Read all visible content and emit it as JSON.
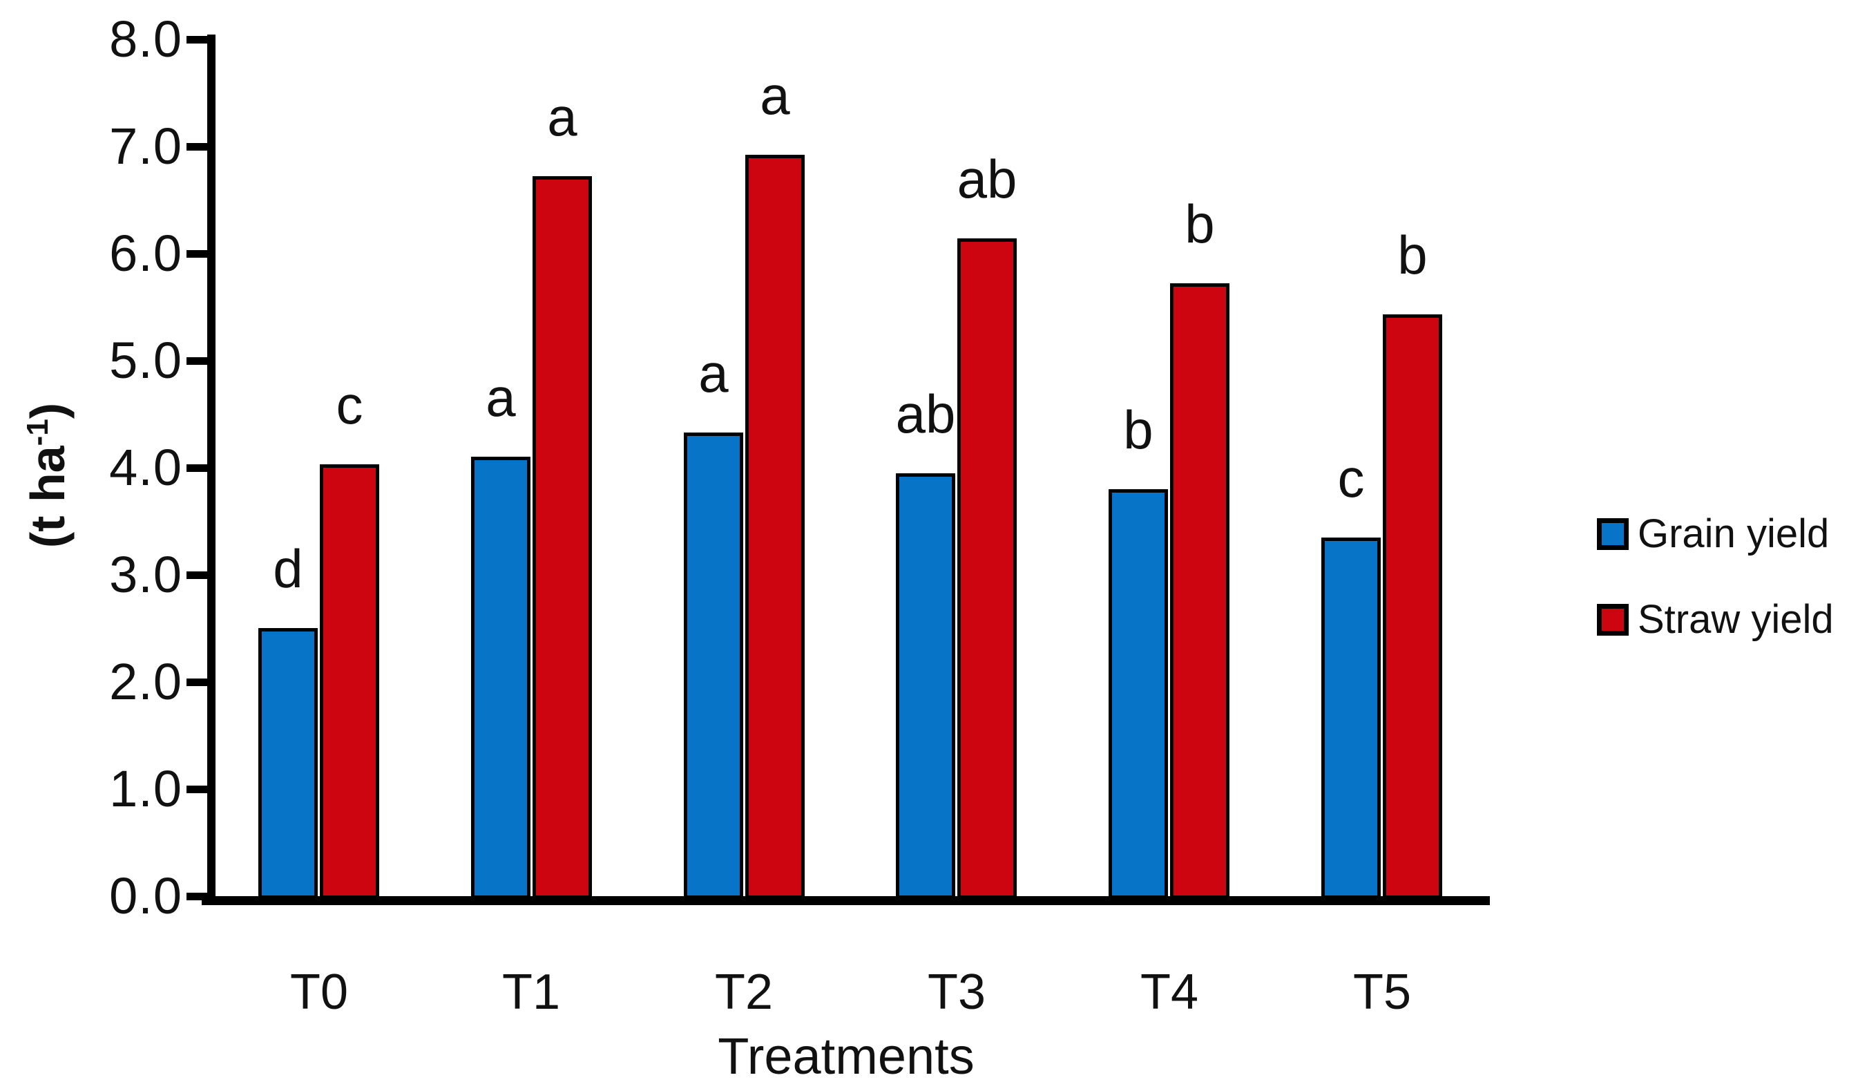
{
  "chart_data": {
    "type": "bar",
    "title": "",
    "categories": [
      "T0",
      "T1",
      "T2",
      "T3",
      "T4",
      "T5"
    ],
    "series": [
      {
        "name": "Grain yield",
        "color": "#0774C7",
        "values": [
          2.5,
          4.1,
          4.33,
          3.95,
          3.8,
          3.35
        ],
        "sig_letters": [
          "d",
          "a",
          "a",
          "ab",
          "b",
          "c"
        ]
      },
      {
        "name": "Straw yield",
        "color": "#CC0511",
        "values": [
          4.03,
          6.72,
          6.92,
          6.14,
          5.72,
          5.43
        ],
        "sig_letters": [
          "c",
          "a",
          "a",
          "ab",
          "b",
          "b"
        ]
      }
    ],
    "xlabel": "Treatments",
    "ylabel": "(t ha⁻¹)",
    "ylabel_text": "(t ha",
    "ylabel_sup": "-1",
    "ylabel_end": ")",
    "ylim": [
      0,
      8
    ],
    "ytick_step": 1.0,
    "ytick_labels": [
      "0.0",
      "1.0",
      "2.0",
      "3.0",
      "4.0",
      "5.0",
      "6.0",
      "7.0",
      "8.0"
    ],
    "grid": false,
    "legend_position": "right",
    "bar_outline_color": "#000000",
    "axis_color": "#000000",
    "background_color": "#ffffff"
  }
}
